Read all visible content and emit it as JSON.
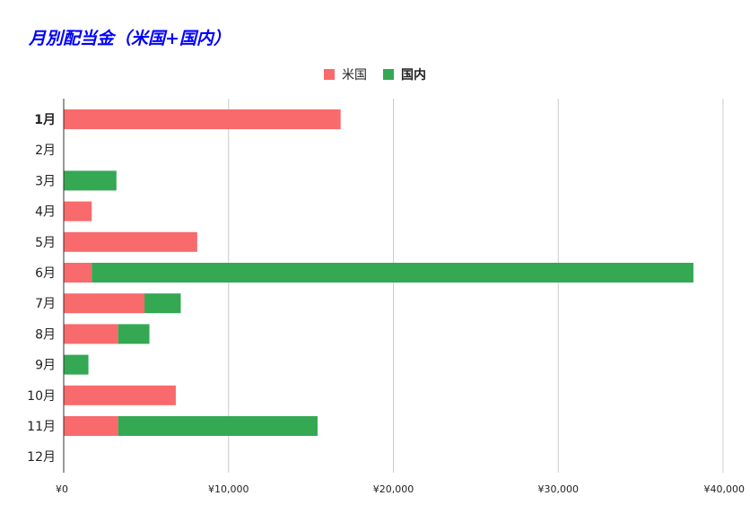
{
  "chart_data": {
    "type": "bar",
    "orientation": "horizontal",
    "stacked": true,
    "title": "月別配当金（米国+国内）",
    "categories": [
      "1月",
      "2月",
      "3月",
      "4月",
      "5月",
      "6月",
      "7月",
      "8月",
      "9月",
      "10月",
      "11月",
      "12月"
    ],
    "series": [
      {
        "name": "米国",
        "color": "#f86a6c",
        "values": [
          16800,
          0,
          0,
          1700,
          8100,
          1700,
          4900,
          3300,
          0,
          6800,
          3300,
          0
        ]
      },
      {
        "name": "国内",
        "color": "#34a853",
        "values": [
          0,
          0,
          3200,
          0,
          0,
          36500,
          2200,
          1900,
          1500,
          0,
          12100,
          0
        ]
      }
    ],
    "xlim": [
      0,
      40000
    ],
    "x_ticks": [
      "¥0",
      "¥10,000",
      "¥20,000",
      "¥30,000",
      "¥40,000"
    ],
    "grid": true,
    "legend_position": "top-center",
    "xlabel": "",
    "ylabel": ""
  }
}
